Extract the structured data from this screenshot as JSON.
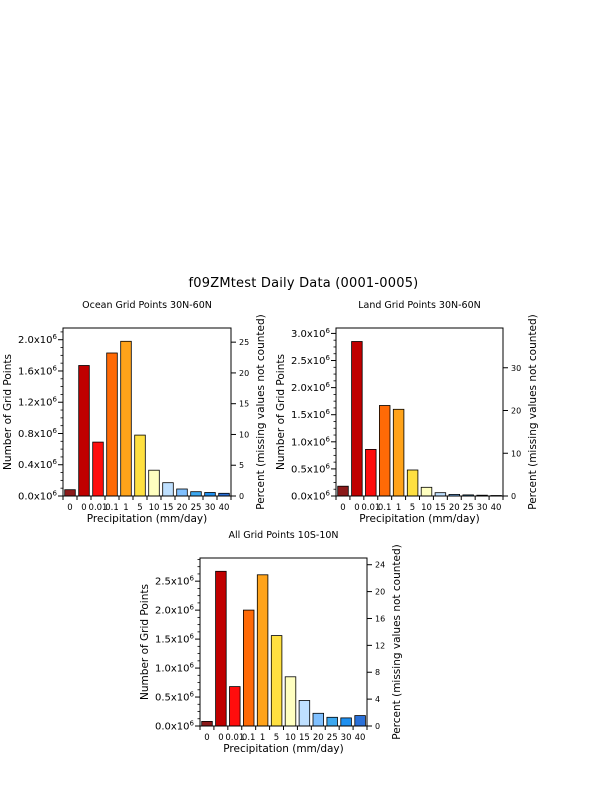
{
  "title": "f09ZMtest Daily Data (0001-0005)",
  "colors": [
    "#8b1a1a",
    "#c00000",
    "#ff0d0d",
    "#ff6a06",
    "#ffa31a",
    "#ffe040",
    "#ffffc0",
    "#bfe0ff",
    "#80c0ff",
    "#3ca8f0",
    "#1e90f0",
    "#2a70d8"
  ],
  "chart_data": [
    {
      "type": "bar",
      "title": "Ocean Grid Points 30N-60N",
      "xlabel": "Precipitation (mm/day)",
      "ylabel": "Number of Grid Points",
      "ylabel_right": "Percent (missing values not counted)",
      "x_tick_labels": [
        "0",
        "0",
        "0.01",
        "0.1",
        "1",
        "5",
        "10",
        "15",
        "20",
        "25",
        "30",
        "40"
      ],
      "values": [
        80000,
        1670000,
        690000,
        1830000,
        1980000,
        780000,
        330000,
        170000,
        90000,
        55000,
        45000,
        35000
      ],
      "ylim": [
        0,
        2150000
      ],
      "yticks": [
        0,
        400000,
        800000,
        1200000,
        1600000,
        2000000
      ],
      "ytick_labels": [
        "0.0x10⁶",
        "0.4x10⁶",
        "0.8x10⁶",
        "1.2x10⁶",
        "1.6x10⁶",
        "2.0x10⁶"
      ],
      "right_max": 27.3,
      "right_ticks": [
        0,
        5,
        10,
        15,
        20,
        25
      ]
    },
    {
      "type": "bar",
      "title": "Land Grid Points 30N-60N",
      "xlabel": "Precipitation (mm/day)",
      "ylabel": "Number of Grid Points",
      "ylabel_right": "Percent (missing values not counted)",
      "x_tick_labels": [
        "0",
        "0",
        "0.01",
        "0.1",
        "1",
        "5",
        "10",
        "15",
        "20",
        "25",
        "30",
        "40"
      ],
      "values": [
        180000,
        2850000,
        860000,
        1670000,
        1600000,
        480000,
        160000,
        60000,
        30000,
        20000,
        15000,
        10000
      ],
      "ylim": [
        0,
        3100000
      ],
      "yticks": [
        0,
        500000,
        1000000,
        1500000,
        2000000,
        2500000,
        3000000
      ],
      "ytick_labels": [
        "0.0x10⁶",
        "0.5x10⁶",
        "1.0x10⁶",
        "1.5x10⁶",
        "2.0x10⁶",
        "2.5x10⁶",
        "3.0x10⁶"
      ],
      "right_max": 39.3,
      "right_ticks": [
        0,
        10,
        20,
        30
      ]
    },
    {
      "type": "bar",
      "title": "All Grid Points 10S-10N",
      "xlabel": "Precipitation (mm/day)",
      "ylabel": "Number of Grid Points",
      "ylabel_right": "Percent (missing values not counted)",
      "x_tick_labels": [
        "0",
        "0",
        "0.01",
        "0.1",
        "1",
        "5",
        "10",
        "15",
        "20",
        "25",
        "30",
        "40"
      ],
      "values": [
        80000,
        2670000,
        680000,
        2000000,
        2610000,
        1560000,
        850000,
        440000,
        220000,
        150000,
        140000,
        180000
      ],
      "ylim": [
        0,
        2900000
      ],
      "yticks": [
        0,
        500000,
        1000000,
        1500000,
        2000000,
        2500000
      ],
      "ytick_labels": [
        "0.0x10⁶",
        "0.5x10⁶",
        "1.0x10⁶",
        "1.5x10⁶",
        "2.0x10⁶",
        "2.5x10⁶"
      ],
      "right_max": 25.0,
      "right_ticks": [
        0,
        4,
        8,
        12,
        16,
        20,
        24
      ]
    }
  ]
}
